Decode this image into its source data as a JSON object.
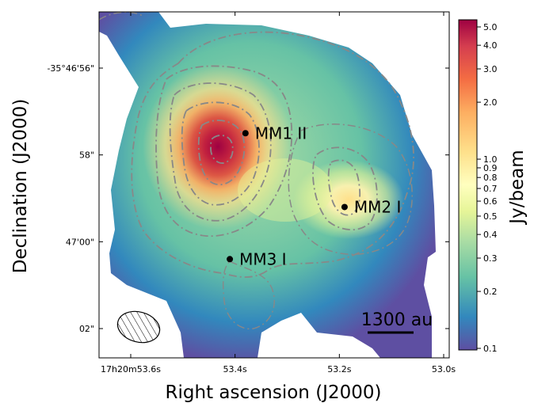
{
  "axes": {
    "xlabel": "Right ascension (J2000)",
    "ylabel": "Declination (J2000)",
    "x_ticks": [
      {
        "label": "17h20m53.6s",
        "ra_s": 53.6
      },
      {
        "label": "53.4s",
        "ra_s": 53.4
      },
      {
        "label": "53.2s",
        "ra_s": 53.2
      },
      {
        "label": "53.0s",
        "ra_s": 53.0
      }
    ],
    "y_ticks": [
      {
        "label": "-35°46'56\"",
        "dec_arcsec": 56
      },
      {
        "label": "58\"",
        "dec_arcsec": 58
      },
      {
        "label": "47'00\"",
        "dec_arcsec": 60
      },
      {
        "label": "02\"",
        "dec_arcsec": 62
      }
    ]
  },
  "colorbar": {
    "label": "Jy/beam",
    "scale": "log",
    "colormap": "Spectral_r",
    "range": [
      0.1,
      5.0
    ],
    "ticks": [
      {
        "label": "5.0",
        "value": 5.0
      },
      {
        "label": "4.0",
        "value": 4.0
      },
      {
        "label": "3.0",
        "value": 3.0
      },
      {
        "label": "2.0",
        "value": 2.0
      },
      {
        "label": "1.0",
        "value": 1.0
      },
      {
        "label": "0.9",
        "value": 0.9
      },
      {
        "label": "0.8",
        "value": 0.8
      },
      {
        "label": "0.7",
        "value": 0.7
      },
      {
        "label": "0.6",
        "value": 0.6
      },
      {
        "label": "0.5",
        "value": 0.5
      },
      {
        "label": "0.4",
        "value": 0.4
      },
      {
        "label": "0.3",
        "value": 0.3
      },
      {
        "label": "0.2",
        "value": 0.2
      },
      {
        "label": "0.1",
        "value": 0.1
      }
    ],
    "colors": [
      "#5e4fa2",
      "#3288bd",
      "#66c2a5",
      "#abdda4",
      "#e6f598",
      "#ffffbf",
      "#fee08b",
      "#fdae61",
      "#f46d43",
      "#d53e4f",
      "#9e0142"
    ]
  },
  "sources": [
    {
      "name": "MM1 II",
      "ra_s": 53.38,
      "dec_arcsec": 57.5
    },
    {
      "name": "MM2 I",
      "ra_s": 53.19,
      "dec_arcsec": 59.2
    },
    {
      "name": "MM3 I",
      "ra_s": 53.41,
      "dec_arcsec": 60.4
    }
  ],
  "scalebar": {
    "label": "1300 au"
  },
  "beam": {
    "hatched": true
  }
}
